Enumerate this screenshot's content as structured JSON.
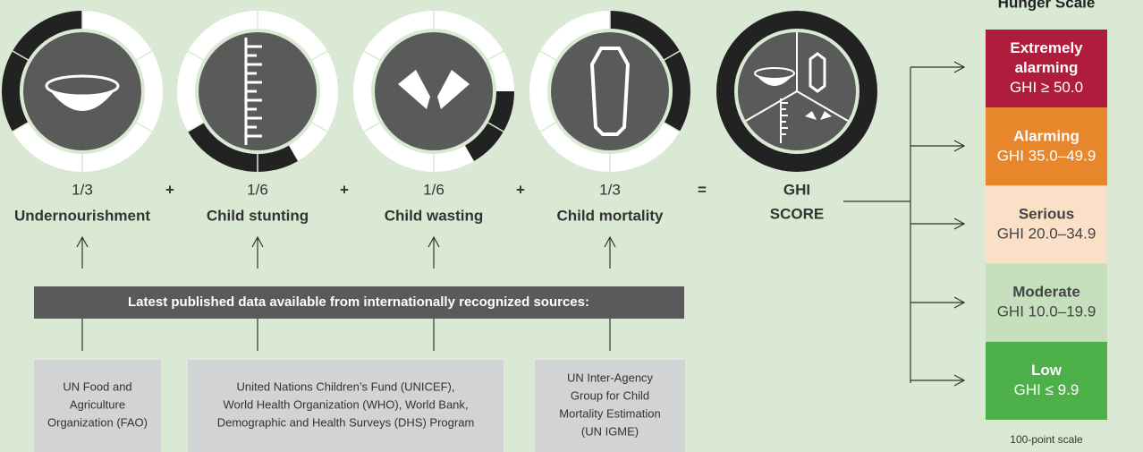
{
  "components": [
    {
      "weight": "1/3",
      "label": "Undernourishment"
    },
    {
      "weight": "1/6",
      "label": "Child stunting"
    },
    {
      "weight": "1/6",
      "label": "Child wasting"
    },
    {
      "weight": "1/3",
      "label": "Child mortality"
    }
  ],
  "operators": [
    "+",
    "+",
    "+",
    "="
  ],
  "result": {
    "line1": "GHI",
    "line2": "SCORE"
  },
  "sources_banner": "Latest published data available from internationally recognized sources:",
  "sources": [
    {
      "lines": [
        "UN Food and",
        "Agriculture",
        "Organization (FAO)"
      ]
    },
    {
      "lines": [
        "United Nations Children’s Fund (UNICEF),",
        "World Health Organization (WHO), World Bank,",
        "Demographic and Health Surveys (DHS) Program"
      ]
    },
    {
      "lines": [
        "UN Inter-Agency",
        "Group for Child",
        "Mortality Estimation",
        "(UN IGME)"
      ]
    }
  ],
  "scale": {
    "title": "Hunger Scale",
    "footer": "100-point scale",
    "levels": [
      {
        "name": [
          "Extremely",
          "alarming"
        ],
        "range": "GHI ≥ 50.0"
      },
      {
        "name": [
          "Alarming"
        ],
        "range": "GHI 35.0–49.9"
      },
      {
        "name": [
          "Serious"
        ],
        "range": "GHI 20.0–34.9"
      },
      {
        "name": [
          "Moderate"
        ],
        "range": "GHI 10.0–19.9"
      },
      {
        "name": [
          "Low"
        ],
        "range": "GHI ≤ 9.9"
      }
    ]
  }
}
